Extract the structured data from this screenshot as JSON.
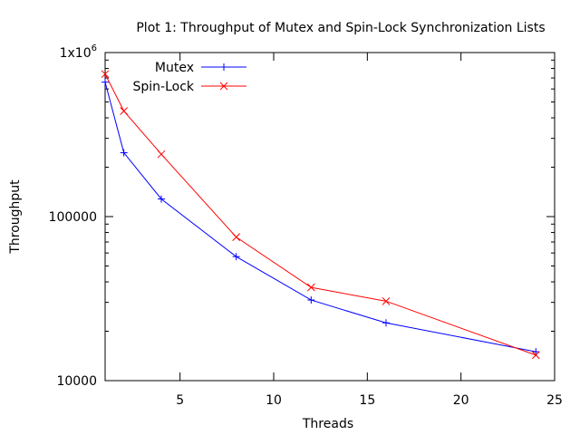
{
  "chart_data": {
    "type": "line",
    "title": "Plot 1: Throughput of Mutex and Spin-Lock Synchronization Lists",
    "xlabel": "Threads",
    "ylabel": "Throughput",
    "xlim": [
      1,
      25
    ],
    "ylim": [
      10000,
      1000000
    ],
    "yscale": "log",
    "grid": false,
    "legend_position": "top-left",
    "x_ticks": [
      5,
      10,
      15,
      20,
      25
    ],
    "x_tick_labels": [
      "5",
      "10",
      "15",
      "20",
      "25"
    ],
    "y_tick_labels": [
      {
        "value": 10000,
        "base": "10000",
        "sup": ""
      },
      {
        "value": 100000,
        "base": "100000",
        "sup": ""
      },
      {
        "value": 1000000,
        "base": "1x10",
        "sup": "6"
      }
    ],
    "series": [
      {
        "name": "Mutex",
        "color": "#0000ff",
        "marker": "plus",
        "x": [
          1,
          2,
          4,
          8,
          12,
          16,
          24
        ],
        "y": [
          660000,
          245000,
          128000,
          57000,
          31000,
          22500,
          15000
        ]
      },
      {
        "name": "Spin-Lock",
        "color": "#ff0000",
        "marker": "cross",
        "x": [
          1,
          2,
          4,
          8,
          12,
          16,
          24
        ],
        "y": [
          740000,
          440000,
          240000,
          75000,
          37000,
          30500,
          14300
        ]
      }
    ]
  }
}
